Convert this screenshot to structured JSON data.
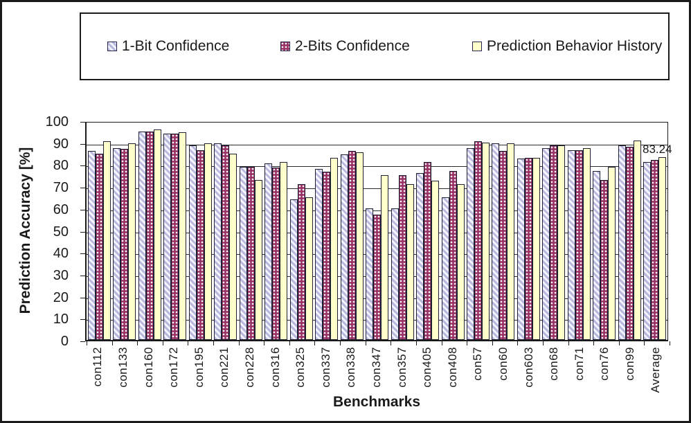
{
  "legend": {
    "items": [
      {
        "label": "1-Bit Confidence",
        "pattern": "diagonal",
        "color": "#c7c7e8"
      },
      {
        "label": "2-Bits Confidence",
        "pattern": "dots",
        "color": "#993366"
      },
      {
        "label": "Prediction Behavior History",
        "pattern": "solid",
        "color": "#ffffcc"
      }
    ]
  },
  "annotation": {
    "text": "83.24"
  },
  "chart_data": {
    "type": "bar",
    "title": "",
    "xlabel": "Benchmarks",
    "ylabel": "Prediction Accuracy [%]",
    "ylim": [
      0,
      100
    ],
    "ytick_step": 10,
    "grid": true,
    "legend_position": "top",
    "categories": [
      "con112",
      "con133",
      "con160",
      "con172",
      "con195",
      "con221",
      "con228",
      "con316",
      "con325",
      "con337",
      "con338",
      "con347",
      "con357",
      "con405",
      "con408",
      "con57",
      "con60",
      "con603",
      "con68",
      "con71",
      "con76",
      "con99",
      "Average"
    ],
    "series": [
      {
        "name": "1-Bit Confidence",
        "color": "#c7c7e8",
        "pattern": "diagonal",
        "values": [
          86,
          87.5,
          95,
          94,
          88.5,
          89.5,
          79,
          80.5,
          64,
          78,
          84.5,
          60,
          60,
          76,
          65,
          87.5,
          89.5,
          82.5,
          87.5,
          86.5,
          77,
          88.5,
          81
        ]
      },
      {
        "name": "2-Bits Confidence",
        "color": "#993366",
        "pattern": "dots",
        "values": [
          85,
          87,
          95,
          94,
          86.5,
          88.5,
          79,
          78.5,
          71,
          76.5,
          86,
          57,
          75,
          81,
          77,
          90.5,
          86,
          83,
          88.5,
          86.5,
          73,
          88,
          82
        ]
      },
      {
        "name": "Prediction Behavior History",
        "color": "#ffffcc",
        "pattern": "solid",
        "values": [
          90.5,
          89.5,
          96,
          94.5,
          89.5,
          85,
          73,
          81,
          65,
          83,
          85.5,
          75,
          71,
          72.5,
          71,
          90,
          89.5,
          83,
          88.5,
          87.5,
          79,
          91,
          83.24
        ]
      }
    ],
    "annotations": [
      {
        "text": "83.24",
        "category": "Average",
        "series": "Prediction Behavior History"
      }
    ]
  },
  "colors": {
    "bar_border": "#1f1f33",
    "gridline": "#2b2b2b",
    "frame": "#1a1a1a",
    "background": "#ffffff"
  }
}
